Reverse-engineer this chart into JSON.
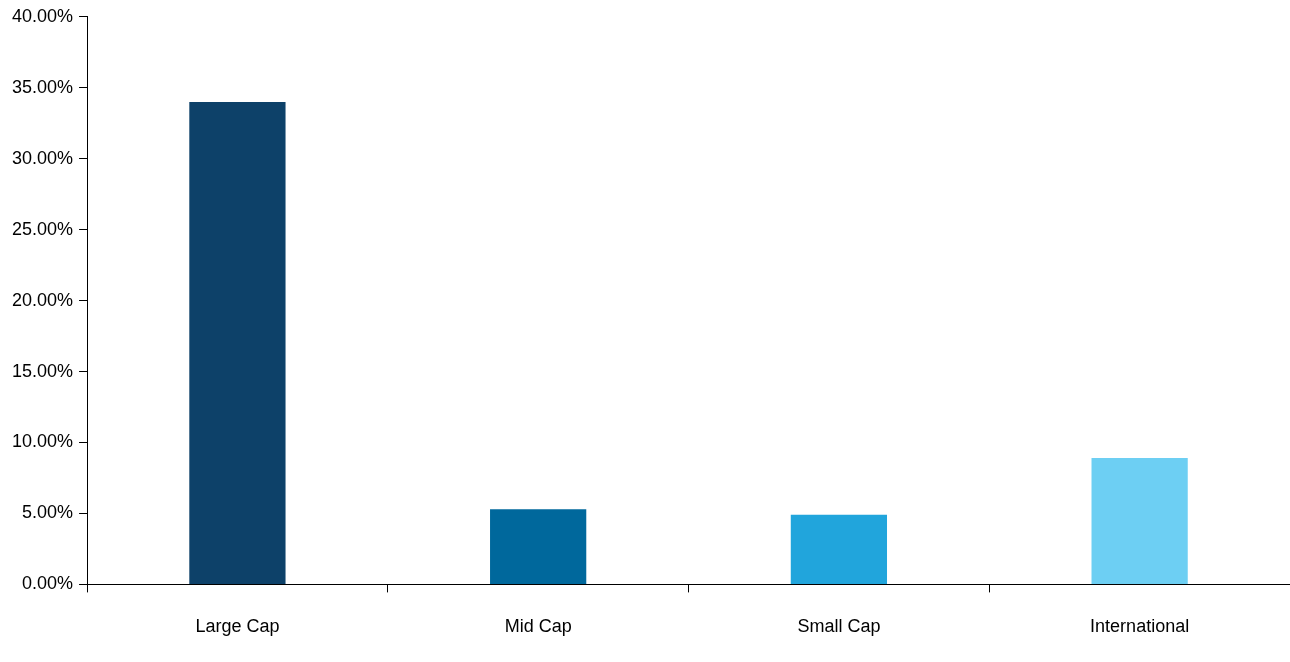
{
  "chart_data": {
    "type": "bar",
    "categories": [
      "Large Cap",
      "Mid Cap",
      "Small Cap",
      "International"
    ],
    "values": [
      34.0,
      5.3,
      4.9,
      8.9
    ],
    "colors": [
      "#0d4169",
      "#00689c",
      "#21a5dc",
      "#6dcff3"
    ],
    "ylim": [
      0,
      40
    ],
    "yticks": [
      {
        "value": 0,
        "label": "0.00%"
      },
      {
        "value": 5,
        "label": "5.00%"
      },
      {
        "value": 10,
        "label": "10.00%"
      },
      {
        "value": 15,
        "label": "15.00%"
      },
      {
        "value": 20,
        "label": "20.00%"
      },
      {
        "value": 25,
        "label": "25.00%"
      },
      {
        "value": 30,
        "label": "30.00%"
      },
      {
        "value": 35,
        "label": "35.00%"
      },
      {
        "value": 40,
        "label": "40.00%"
      }
    ],
    "grid": false,
    "legend": false
  }
}
